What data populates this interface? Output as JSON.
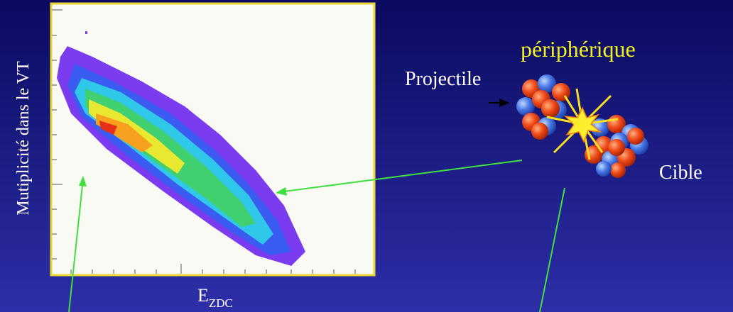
{
  "plot": {
    "y_axis_label": "Mutiplicité dans le VT",
    "x_axis_label": {
      "main": "E",
      "subscript": "ZDC"
    }
  },
  "labels": {
    "collision_type": "périphérique",
    "projectile": "Projectile",
    "target": "Cible"
  }
}
